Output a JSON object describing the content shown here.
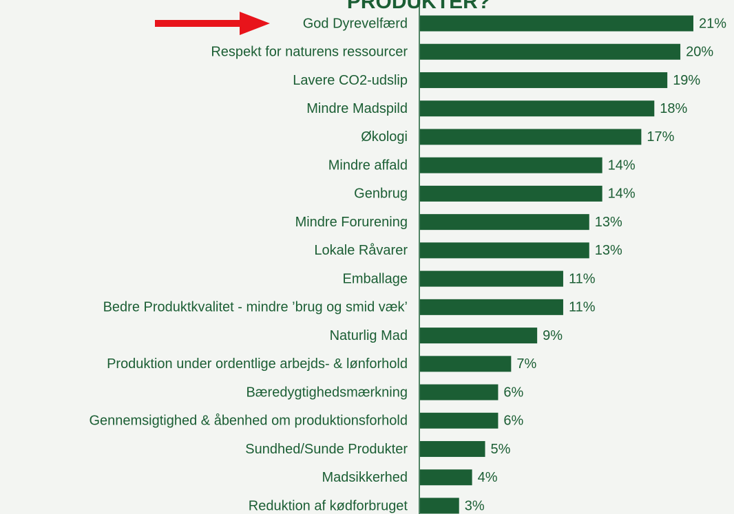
{
  "chart_data": {
    "type": "hbar",
    "title": "PRODUKTER?",
    "categories": [
      "God Dyrevelfærd",
      "Respekt for naturens ressourcer",
      "Lavere CO2-udslip",
      "Mindre Madspild",
      "Økologi",
      "Mindre affald",
      "Genbrug",
      "Mindre Forurening",
      "Lokale Råvarer",
      "Emballage",
      "Bedre Produktkvalitet - mindre ’brug og smid væk’",
      "Naturlig Mad",
      "Produktion under ordentlige arbejds- & lønforhold",
      "Bæredygtighedsmærkning",
      "Gennemsigtighed & åbenhed om produktionsforhold",
      "Sundhed/Sunde Produkter",
      "Madsikkerhed",
      "Reduktion af kødforbruget"
    ],
    "values": [
      21,
      20,
      19,
      18,
      17,
      14,
      14,
      13,
      13,
      11,
      11,
      9,
      7,
      6,
      6,
      5,
      4,
      3
    ],
    "value_labels": [
      "21%",
      "20%",
      "19%",
      "18%",
      "17%",
      "14%",
      "14%",
      "13%",
      "13%",
      "11%",
      "11%",
      "9%",
      "7%",
      "6%",
      "6%",
      "5%",
      "4%",
      "3%"
    ],
    "color": "#1b5e34"
  }
}
